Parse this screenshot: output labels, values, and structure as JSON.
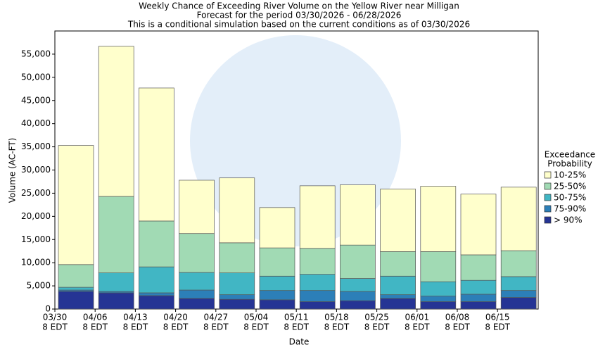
{
  "chart_data": {
    "type": "stacked_bar",
    "title": "Weekly Chance of Exceeding River Volume on the Yellow River near Milligan",
    "subtitle": [
      "Forecast for the period 03/30/2026 - 06/28/2026",
      "This is a conditional simulation based on the current conditions as of 03/30/2026"
    ],
    "x_label": "Date",
    "y_label": "Volume (AC-FT)",
    "categories": [
      "03/30",
      "04/06",
      "04/13",
      "04/20",
      "04/27",
      "05/04",
      "05/11",
      "05/18",
      "05/25",
      "06/01",
      "06/08",
      "06/15"
    ],
    "category_suffix": "8 EDT",
    "legend_title": [
      "Exceedance",
      "Probability"
    ],
    "series": [
      {
        "name": "> 90%",
        "color": "#253494",
        "values": [
          3800,
          3500,
          2900,
          2300,
          2100,
          2000,
          1600,
          1800,
          2300,
          1600,
          1600,
          2500
        ]
      },
      {
        "name": "75-90%",
        "color": "#2c7fb8",
        "values": [
          300,
          300,
          600,
          1800,
          1000,
          2000,
          2400,
          2000,
          800,
          1200,
          1600,
          1500
        ]
      },
      {
        "name": "50-75%",
        "color": "#41b6c4",
        "values": [
          600,
          4000,
          5600,
          3800,
          4700,
          3100,
          3500,
          2800,
          4000,
          3100,
          3000,
          3000
        ]
      },
      {
        "name": "25-50%",
        "color": "#a1dab4",
        "values": [
          4900,
          16500,
          9900,
          8400,
          6500,
          6100,
          5600,
          7200,
          5300,
          6500,
          5500,
          5600
        ]
      },
      {
        "name": "10-25%",
        "color": "#ffffcc",
        "values": [
          25700,
          32400,
          28700,
          11500,
          14000,
          8700,
          13500,
          13000,
          13500,
          14100,
          13100,
          13700
        ]
      }
    ],
    "ylim": [
      0,
      60000
    ],
    "yticks": [
      0,
      {
        "value": 5000,
        "label": "5,000"
      },
      {
        "value": 10000,
        "label": "10,000"
      },
      {
        "value": 15000,
        "label": "15,000"
      },
      {
        "value": 20000,
        "label": "20,000"
      },
      {
        "value": 25000,
        "label": "25,000"
      },
      {
        "value": 30000,
        "label": "30,000"
      },
      {
        "value": 35000,
        "label": "35,000"
      },
      {
        "value": 40000,
        "label": "40,000"
      },
      {
        "value": 45000,
        "label": "45,000"
      },
      {
        "value": 50000,
        "label": "50,000"
      },
      {
        "value": 55000,
        "label": "55,000"
      }
    ],
    "grid": false
  }
}
